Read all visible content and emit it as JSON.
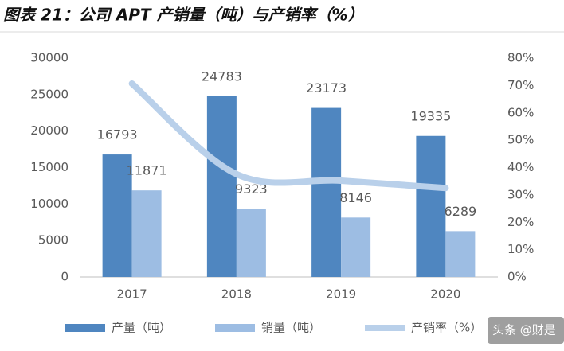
{
  "chart_data": {
    "type": "bar-line",
    "title": "图表 21：公司 APT 产销量（吨）与产销率（%）",
    "categories": [
      "2017",
      "2018",
      "2019",
      "2020"
    ],
    "series": [
      {
        "name": "产量（吨）",
        "color": "#4f86c0",
        "type": "bar",
        "values": [
          16793,
          24783,
          23173,
          19335
        ]
      },
      {
        "name": "销量（吨）",
        "color": "#9dbde3",
        "type": "bar",
        "values": [
          11871,
          9323,
          8146,
          6289
        ]
      },
      {
        "name": "产销率（%）",
        "color": "#b9d0ea",
        "type": "line",
        "axis": "y2",
        "values": [
          70.7,
          37.6,
          35.2,
          32.5
        ]
      }
    ],
    "ylim": [
      0,
      30000
    ],
    "yticks": [
      0,
      5000,
      10000,
      15000,
      20000,
      25000,
      30000
    ],
    "y2lim": [
      0,
      80
    ],
    "y2ticks": [
      {
        "value": 0,
        "label": "0%"
      },
      {
        "value": 10,
        "label": "10%"
      },
      {
        "value": 20,
        "label": "20%"
      },
      {
        "value": 30,
        "label": "30%"
      },
      {
        "value": 40,
        "label": "40%"
      },
      {
        "value": 50,
        "label": "50%"
      },
      {
        "value": 60,
        "label": "60%"
      },
      {
        "value": 70,
        "label": "70%"
      },
      {
        "value": 80,
        "label": "80%"
      }
    ],
    "legend": "bottom",
    "watermark": "头条 @财是"
  }
}
